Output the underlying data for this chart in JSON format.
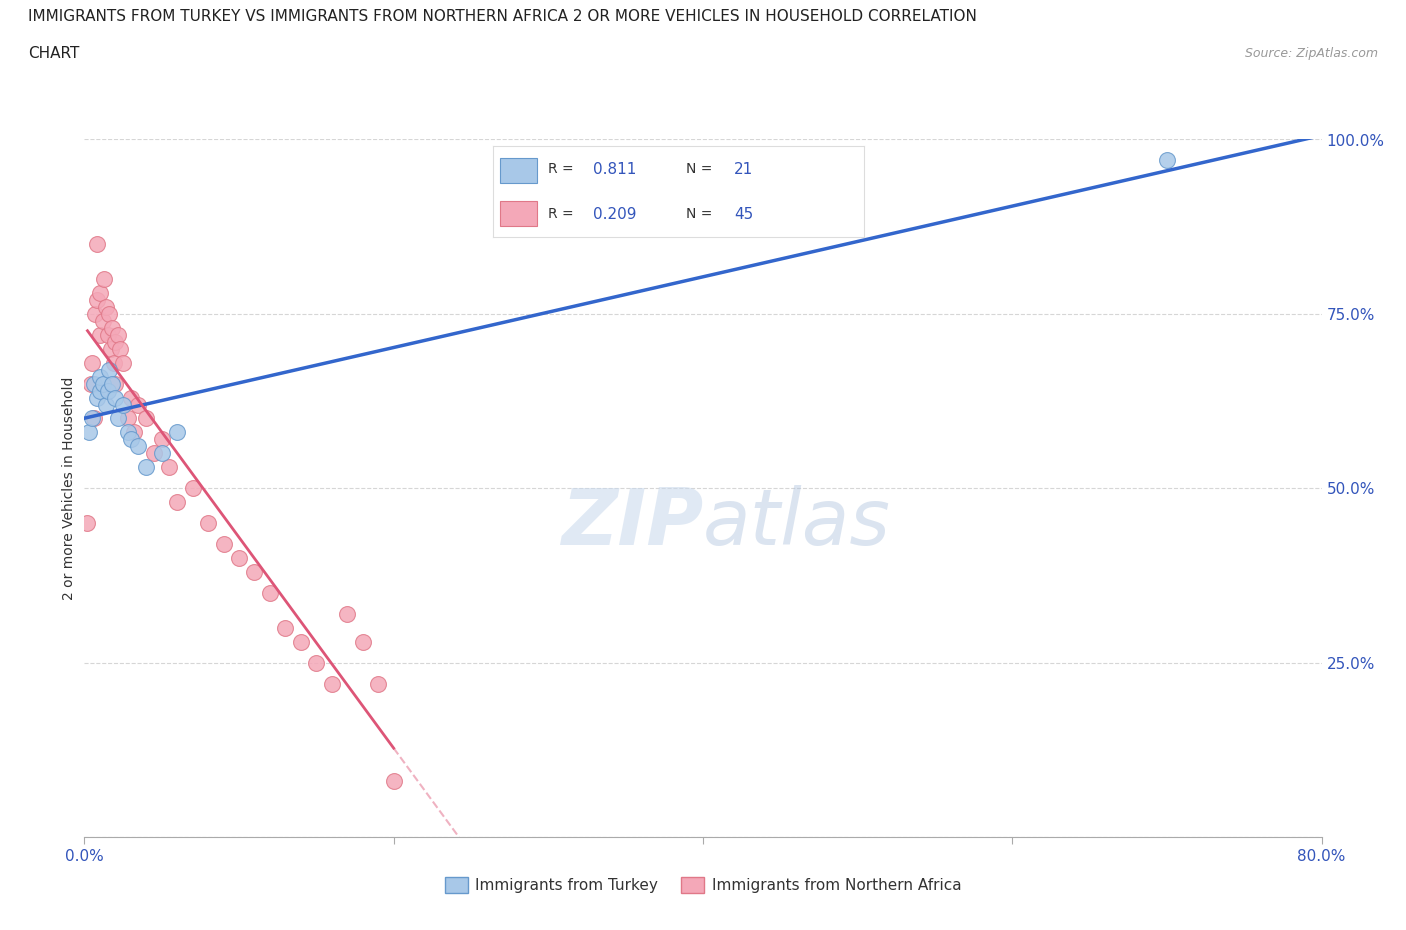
{
  "title_line1": "IMMIGRANTS FROM TURKEY VS IMMIGRANTS FROM NORTHERN AFRICA 2 OR MORE VEHICLES IN HOUSEHOLD CORRELATION",
  "title_line2": "CHART",
  "source": "Source: ZipAtlas.com",
  "ylabel": "2 or more Vehicles in Household",
  "xlim": [
    0.0,
    80.0
  ],
  "ylim": [
    0.0,
    100.0
  ],
  "turkey_color": "#a8c8e8",
  "turkey_edge": "#6699cc",
  "na_color": "#f4a8b8",
  "na_edge": "#e07888",
  "trend_blue": "#3366cc",
  "trend_pink": "#dd5577",
  "r_turkey": 0.811,
  "n_turkey": 21,
  "r_na": 0.209,
  "n_na": 45,
  "legend_r_color": "#3355bb",
  "turkey_x": [
    0.3,
    0.5,
    0.6,
    0.8,
    1.0,
    1.0,
    1.2,
    1.4,
    1.5,
    1.6,
    1.8,
    2.0,
    2.2,
    2.5,
    2.8,
    3.0,
    3.5,
    4.0,
    5.0,
    6.0,
    70.0
  ],
  "turkey_y": [
    58,
    60,
    65,
    63,
    64,
    66,
    65,
    62,
    64,
    67,
    65,
    63,
    60,
    62,
    58,
    57,
    56,
    53,
    55,
    58,
    97
  ],
  "na_x": [
    0.2,
    0.4,
    0.5,
    0.7,
    0.8,
    0.8,
    1.0,
    1.0,
    1.2,
    1.3,
    1.4,
    1.5,
    1.6,
    1.7,
    1.8,
    1.9,
    2.0,
    2.0,
    2.2,
    2.3,
    2.5,
    2.8,
    3.0,
    3.2,
    3.5,
    4.0,
    4.5,
    5.0,
    5.5,
    6.0,
    7.0,
    8.0,
    9.0,
    10.0,
    11.0,
    12.0,
    13.0,
    14.0,
    15.0,
    16.0,
    17.0,
    18.0,
    19.0,
    20.0,
    0.6
  ],
  "na_y": [
    45,
    65,
    68,
    75,
    77,
    85,
    78,
    72,
    74,
    80,
    76,
    72,
    75,
    70,
    73,
    68,
    71,
    65,
    72,
    70,
    68,
    60,
    63,
    58,
    62,
    60,
    55,
    57,
    53,
    48,
    50,
    45,
    42,
    40,
    38,
    35,
    30,
    28,
    25,
    22,
    32,
    28,
    22,
    8,
    60
  ]
}
